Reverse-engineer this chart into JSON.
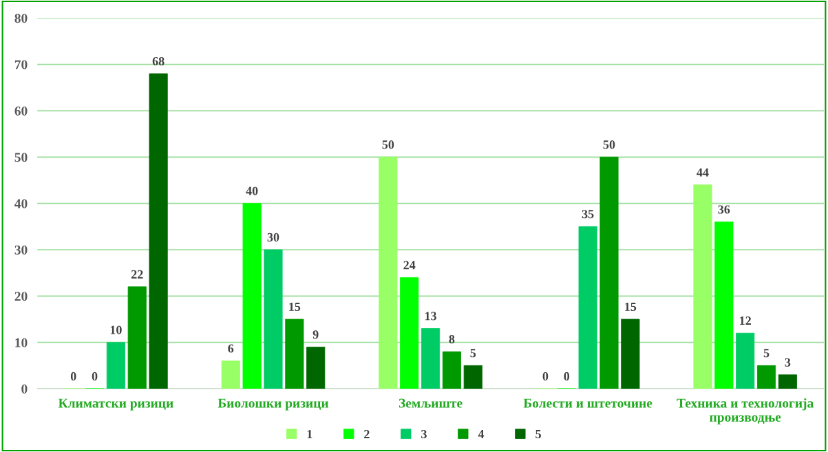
{
  "chart_data": {
    "type": "bar",
    "categories": [
      "Климатски ризици",
      "Биолошки ризици",
      "Земљиште",
      "Болести и штеточине",
      "Техника и технологија производње"
    ],
    "series": [
      {
        "name": "1",
        "color": "#99ff66",
        "values": [
          0,
          6,
          50,
          0,
          44
        ]
      },
      {
        "name": "2",
        "color": "#00ff00",
        "values": [
          0,
          40,
          24,
          0,
          36
        ]
      },
      {
        "name": "3",
        "color": "#00cc66",
        "values": [
          10,
          30,
          13,
          35,
          12
        ]
      },
      {
        "name": "4",
        "color": "#009900",
        "values": [
          22,
          15,
          8,
          50,
          5
        ]
      },
      {
        "name": "5",
        "color": "#006600",
        "values": [
          68,
          9,
          5,
          15,
          3
        ]
      }
    ],
    "ylim": [
      0,
      80
    ],
    "yticks": [
      0,
      10,
      20,
      30,
      40,
      50,
      60,
      70,
      80
    ],
    "grid": "y",
    "legend": "bottom",
    "data_labels": true
  }
}
